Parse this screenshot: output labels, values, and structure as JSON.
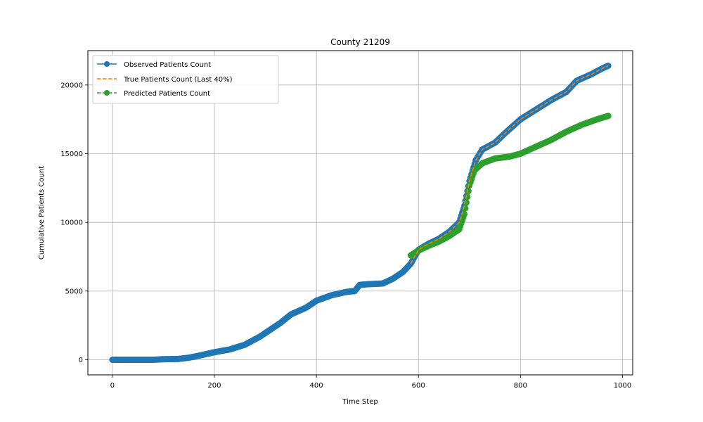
{
  "chart_data": {
    "type": "line",
    "title": "County 21209",
    "xlabel": "Time Step",
    "ylabel": "Cumulative Patients Count",
    "xlim": [
      -48,
      1020
    ],
    "ylim": [
      -1100,
      22500
    ],
    "xticks": [
      0,
      200,
      400,
      600,
      800,
      1000
    ],
    "yticks": [
      0,
      5000,
      10000,
      15000,
      20000
    ],
    "grid": true,
    "legend_position": "upper left",
    "series": [
      {
        "name": "Observed Patients Count",
        "color": "#1f77b4",
        "style": "solid-with-circle-markers",
        "points": [
          [
            0,
            0
          ],
          [
            80,
            0
          ],
          [
            100,
            40
          ],
          [
            130,
            60
          ],
          [
            150,
            150
          ],
          [
            170,
            300
          ],
          [
            200,
            550
          ],
          [
            230,
            750
          ],
          [
            260,
            1100
          ],
          [
            290,
            1700
          ],
          [
            310,
            2200
          ],
          [
            330,
            2700
          ],
          [
            350,
            3300
          ],
          [
            380,
            3800
          ],
          [
            400,
            4300
          ],
          [
            430,
            4700
          ],
          [
            460,
            4950
          ],
          [
            475,
            5000
          ],
          [
            485,
            5450
          ],
          [
            500,
            5500
          ],
          [
            530,
            5550
          ],
          [
            550,
            5900
          ],
          [
            570,
            6400
          ],
          [
            585,
            7000
          ],
          [
            600,
            8000
          ],
          [
            620,
            8450
          ],
          [
            640,
            8800
          ],
          [
            660,
            9300
          ],
          [
            680,
            10000
          ],
          [
            690,
            11200
          ],
          [
            700,
            13000
          ],
          [
            712,
            14500
          ],
          [
            725,
            15300
          ],
          [
            750,
            15800
          ],
          [
            770,
            16500
          ],
          [
            800,
            17500
          ],
          [
            830,
            18200
          ],
          [
            860,
            18900
          ],
          [
            890,
            19500
          ],
          [
            910,
            20300
          ],
          [
            940,
            20800
          ],
          [
            960,
            21200
          ],
          [
            972,
            21400
          ]
        ]
      },
      {
        "name": "True Patients Count (Last 40%)",
        "color": "#ff7f0e",
        "style": "dashed",
        "points": [
          [
            585,
            7000
          ],
          [
            600,
            8000
          ],
          [
            620,
            8450
          ],
          [
            640,
            8800
          ],
          [
            660,
            9300
          ],
          [
            680,
            10000
          ],
          [
            690,
            11200
          ],
          [
            700,
            13000
          ],
          [
            712,
            14500
          ],
          [
            725,
            15300
          ],
          [
            750,
            15800
          ],
          [
            770,
            16500
          ],
          [
            800,
            17500
          ],
          [
            830,
            18200
          ],
          [
            860,
            18900
          ],
          [
            890,
            19500
          ],
          [
            910,
            20300
          ],
          [
            940,
            20800
          ],
          [
            960,
            21200
          ],
          [
            972,
            21400
          ]
        ]
      },
      {
        "name": "Predicted Patients Count",
        "color": "#2ca02c",
        "style": "dashed-with-circle-markers",
        "points": [
          [
            585,
            7600
          ],
          [
            600,
            7950
          ],
          [
            620,
            8300
          ],
          [
            640,
            8600
          ],
          [
            660,
            9000
          ],
          [
            680,
            9500
          ],
          [
            690,
            10600
          ],
          [
            700,
            12700
          ],
          [
            710,
            13800
          ],
          [
            725,
            14300
          ],
          [
            750,
            14650
          ],
          [
            780,
            14800
          ],
          [
            800,
            15000
          ],
          [
            830,
            15500
          ],
          [
            860,
            16000
          ],
          [
            890,
            16600
          ],
          [
            920,
            17100
          ],
          [
            950,
            17500
          ],
          [
            972,
            17750
          ]
        ]
      }
    ]
  }
}
